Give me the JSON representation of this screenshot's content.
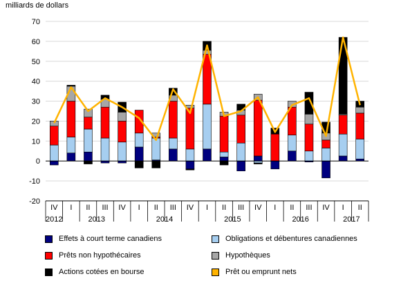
{
  "chart_data": {
    "type": "bar",
    "stacked": true,
    "unit_label": "milliards de dollars",
    "ylim": [
      -20,
      70
    ],
    "yticks": [
      -20,
      -10,
      0,
      10,
      20,
      30,
      40,
      50,
      60,
      70
    ],
    "quarters": [
      "IV",
      "I",
      "II",
      "III",
      "IV",
      "I",
      "II",
      "III",
      "IV",
      "I",
      "II",
      "III",
      "IV",
      "I",
      "II",
      "III",
      "IV",
      "I",
      "II"
    ],
    "years": [
      {
        "label": "2012",
        "start": 0,
        "end": 0
      },
      {
        "label": "2013",
        "start": 1,
        "end": 4
      },
      {
        "label": "2014",
        "start": 5,
        "end": 8
      },
      {
        "label": "2015",
        "start": 9,
        "end": 12
      },
      {
        "label": "2016",
        "start": 13,
        "end": 16
      },
      {
        "label": "2017",
        "start": 17,
        "end": 18
      }
    ],
    "series": [
      {
        "name": "Effets à court terme canadiens",
        "color": "#00007f",
        "values": [
          -2,
          4,
          4.5,
          -1,
          -1,
          7,
          0.5,
          6,
          -4,
          6,
          2,
          -5,
          2.5,
          -4,
          5,
          -0.5,
          -8.5,
          2.5,
          1
        ]
      },
      {
        "name": "Obligations et débentures canadiennes",
        "color": "#a6cef0",
        "values": [
          8,
          8,
          11.5,
          11.5,
          9.5,
          7,
          11,
          5.5,
          6,
          22.5,
          2.5,
          9,
          -1,
          0,
          8,
          5,
          6.5,
          11,
          10
        ]
      },
      {
        "name": "Prêts non hypothécaires",
        "color": "#ff0000",
        "values": [
          9.5,
          18,
          6,
          15.5,
          10.5,
          11.5,
          0.5,
          18.5,
          20.5,
          25,
          18,
          14,
          28,
          13.5,
          14,
          13.5,
          4,
          9.5,
          13
        ]
      },
      {
        "name": "Hypothèques",
        "color": "#a6a6a6",
        "values": [
          2.5,
          7.5,
          4,
          4,
          4.5,
          0,
          2,
          3,
          1.5,
          2,
          2,
          2.5,
          3,
          0,
          3,
          5,
          3.5,
          0.5,
          3
        ]
      },
      {
        "name": "Actions cotées en bourse",
        "color": "#000000",
        "values": [
          0,
          0.5,
          -1.5,
          2,
          5,
          -3.5,
          -3.5,
          3.5,
          -0.5,
          4.5,
          -2,
          3,
          -0.5,
          3,
          0,
          11,
          5.5,
          38.5,
          3
        ]
      },
      {
        "name": "Prêt ou emprunt nets",
        "color": "#ffb300",
        "type": "line",
        "values": [
          19,
          37,
          25,
          31.5,
          27,
          21.5,
          10.5,
          36,
          24,
          58,
          22.5,
          25,
          32,
          14.5,
          28,
          31.5,
          12.5,
          62,
          28
        ]
      }
    ],
    "legend": {
      "position": "bottom",
      "columns": 2
    }
  }
}
